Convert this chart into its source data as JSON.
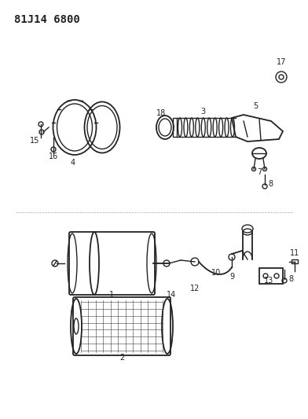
{
  "title": "81J14 6800",
  "bg_color": "#ffffff",
  "fig_width": 3.92,
  "fig_height": 5.33,
  "dpi": 100
}
